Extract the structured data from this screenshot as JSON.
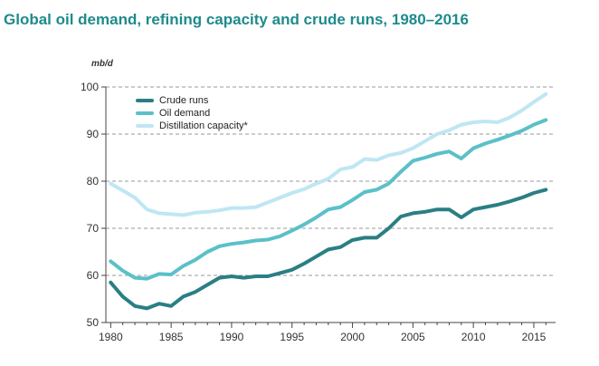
{
  "chart_data": {
    "type": "line",
    "title": "Global oil demand, refining capacity and crude runs, 1980–2016",
    "ylabel": "mb/d",
    "xlabel": "",
    "xlim": [
      1979.6,
      2016.8
    ],
    "ylim": [
      50,
      100
    ],
    "xticks": [
      1980,
      1985,
      1990,
      1995,
      2000,
      2005,
      2010,
      2015
    ],
    "yticks": [
      50,
      60,
      70,
      80,
      90,
      100
    ],
    "grid": "horizontal-dashed",
    "legend_position": "top-left",
    "series": [
      {
        "name": "Crude runs",
        "color": "#2a7f84",
        "x": [
          1980,
          1981,
          1982,
          1983,
          1984,
          1985,
          1986,
          1987,
          1988,
          1989,
          1990,
          1991,
          1992,
          1993,
          1994,
          1995,
          1996,
          1997,
          1998,
          1999,
          2000,
          2001,
          2002,
          2003,
          2004,
          2005,
          2006,
          2007,
          2008,
          2009,
          2010,
          2011,
          2012,
          2013,
          2014,
          2015,
          2016
        ],
        "values": [
          58.5,
          55.5,
          53.5,
          53.0,
          54.0,
          53.5,
          55.5,
          56.5,
          58.0,
          59.5,
          59.8,
          59.5,
          59.8,
          59.8,
          60.5,
          61.2,
          62.5,
          64.0,
          65.5,
          66.0,
          67.5,
          68.0,
          68.0,
          70.0,
          72.5,
          73.2,
          73.5,
          74.0,
          74.0,
          72.3,
          74.0,
          74.5,
          75.0,
          75.7,
          76.5,
          77.5,
          78.2
        ]
      },
      {
        "name": "Oil demand",
        "color": "#5bc0c8",
        "x": [
          1980,
          1981,
          1982,
          1983,
          1984,
          1985,
          1986,
          1987,
          1988,
          1989,
          1990,
          1991,
          1992,
          1993,
          1994,
          1995,
          1996,
          1997,
          1998,
          1999,
          2000,
          2001,
          2002,
          2003,
          2004,
          2005,
          2006,
          2007,
          2008,
          2009,
          2010,
          2011,
          2012,
          2013,
          2014,
          2015,
          2016
        ],
        "values": [
          63.0,
          61.0,
          59.5,
          59.3,
          60.3,
          60.2,
          62.0,
          63.3,
          65.0,
          66.2,
          66.7,
          67.0,
          67.4,
          67.6,
          68.3,
          69.5,
          70.8,
          72.3,
          74.0,
          74.5,
          76.0,
          77.7,
          78.2,
          79.5,
          82.0,
          84.3,
          85.0,
          85.8,
          86.3,
          84.8,
          87.0,
          88.0,
          88.8,
          89.7,
          90.7,
          92.0,
          93.0
        ]
      },
      {
        "name": "Distillation capacity*",
        "color": "#bfe6f3",
        "x": [
          1980,
          1981,
          1982,
          1983,
          1984,
          1985,
          1986,
          1987,
          1988,
          1989,
          1990,
          1991,
          1992,
          1993,
          1994,
          1995,
          1996,
          1997,
          1998,
          1999,
          2000,
          2001,
          2002,
          2003,
          2004,
          2005,
          2006,
          2007,
          2008,
          2009,
          2010,
          2011,
          2012,
          2013,
          2014,
          2015,
          2016
        ],
        "values": [
          79.5,
          78.0,
          76.5,
          74.0,
          73.2,
          73.0,
          72.8,
          73.3,
          73.5,
          73.8,
          74.3,
          74.3,
          74.5,
          75.5,
          76.5,
          77.5,
          78.3,
          79.5,
          80.5,
          82.5,
          83.0,
          84.7,
          84.5,
          85.5,
          86.0,
          87.0,
          88.5,
          90.0,
          90.8,
          92.0,
          92.5,
          92.7,
          92.5,
          93.5,
          95.0,
          96.8,
          98.5
        ]
      }
    ]
  }
}
